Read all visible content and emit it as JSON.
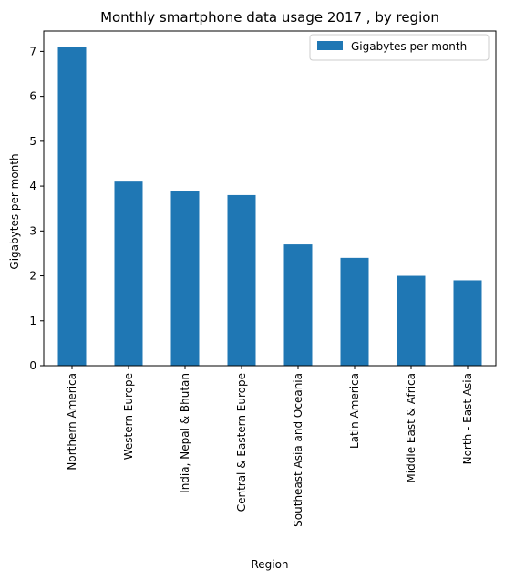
{
  "chart_data": {
    "type": "bar",
    "title": "Monthly smartphone data usage 2017 , by region",
    "xlabel": "Region",
    "ylabel": "Gigabytes per month",
    "categories": [
      "Northern America",
      "Western Europe",
      "India, Nepal & Bhutan",
      "Central & Eastern Europe",
      "Southeast Asia and Oceania",
      "Latin America",
      "Middle East & Africa",
      "North - East Asia"
    ],
    "series": [
      {
        "name": "Gigabytes per month",
        "values": [
          7.1,
          4.1,
          3.9,
          3.8,
          2.7,
          2.4,
          2.0,
          1.9
        ],
        "color": "#1f77b4"
      }
    ],
    "ylim": [
      0,
      7.455
    ],
    "yticks": [
      0,
      1,
      2,
      3,
      4,
      5,
      6,
      7
    ],
    "grid": false,
    "legend_position": "top-right"
  }
}
